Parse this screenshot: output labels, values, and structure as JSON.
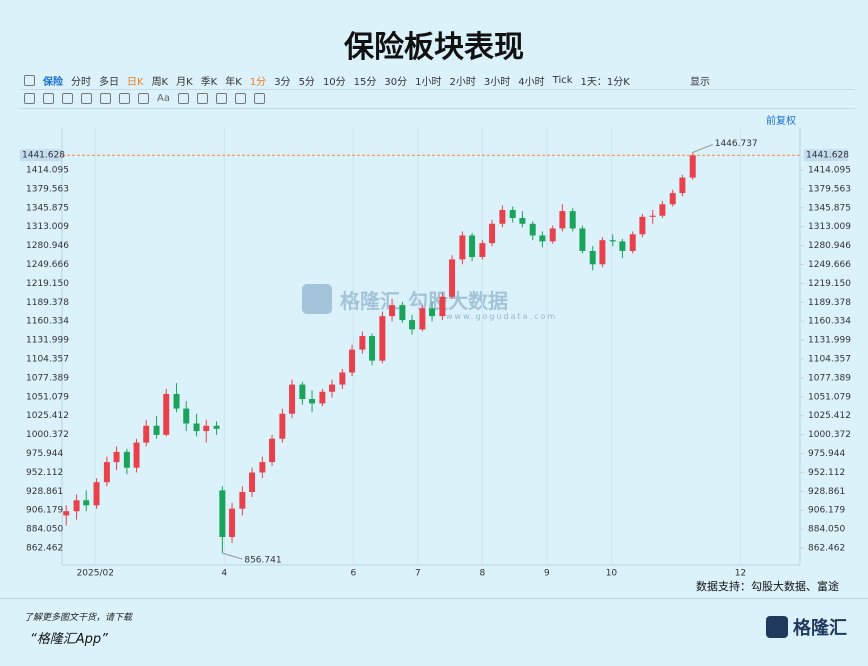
{
  "title": "保险板块表现",
  "toolbar": [
    "保险",
    "分时",
    "多日",
    "日K",
    "周K",
    "月K",
    "季K",
    "年K",
    "1分",
    "3分",
    "5分",
    "10分",
    "15分",
    "30分",
    "1小时",
    "2小时",
    "3小时",
    "4小时",
    "Tick",
    "1天：1分K"
  ],
  "display": "显示",
  "drawing_tool": "Aa",
  "adjust": "前复权",
  "watermark": {
    "brand": "格隆汇",
    "partner": "勾股大数据",
    "url": "www.gogudata.com"
  },
  "source": "数据支持：勾股大数据、富途",
  "footer": {
    "prompt": "了解更多图文干货，请下载",
    "app": "“格隆汇App”",
    "logo": "格隆汇"
  },
  "chart_data": {
    "type": "candlestick",
    "log_scale": true,
    "grid": "x",
    "up_color": "#e8414b",
    "down_color": "#1aa35a",
    "price_line_color": "#f08a3c",
    "x": [
      1.55,
      1.71,
      1.86,
      2.02,
      2.18,
      2.33,
      2.49,
      2.64,
      2.79,
      2.95,
      3.1,
      3.26,
      3.41,
      3.57,
      3.72,
      3.88,
      3.97,
      4.12,
      4.28,
      4.43,
      4.59,
      4.74,
      4.9,
      5.05,
      5.21,
      5.36,
      5.52,
      5.67,
      5.83,
      5.98,
      6.14,
      6.29,
      6.45,
      6.6,
      6.76,
      6.91,
      7.07,
      7.22,
      7.38,
      7.53,
      7.69,
      7.84,
      8.0,
      8.15,
      8.31,
      8.47,
      8.62,
      8.78,
      8.93,
      9.09,
      9.24,
      9.4,
      9.55,
      9.71,
      9.86,
      10.02,
      10.17,
      10.33,
      10.48,
      10.64,
      10.79,
      10.95,
      11.1,
      11.26
    ],
    "open": [
      900,
      905,
      918,
      912,
      940,
      965,
      978,
      958,
      990,
      1012,
      1000,
      1055,
      1035,
      1015,
      1005,
      1012,
      930,
      875,
      908,
      928,
      952,
      965,
      995,
      1028,
      1068,
      1048,
      1042,
      1058,
      1068,
      1085,
      1118,
      1138,
      1102,
      1168,
      1185,
      1162,
      1148,
      1180,
      1168,
      1198,
      1258,
      1298,
      1262,
      1285,
      1318,
      1342,
      1328,
      1318,
      1298,
      1288,
      1310,
      1340,
      1310,
      1272,
      1250,
      1290,
      1288,
      1272,
      1300,
      1330,
      1332,
      1352,
      1372,
      1400
    ],
    "high": [
      912,
      925,
      930,
      945,
      972,
      985,
      982,
      995,
      1020,
      1025,
      1062,
      1070,
      1045,
      1028,
      1020,
      1018,
      935,
      915,
      935,
      958,
      972,
      1000,
      1035,
      1075,
      1072,
      1060,
      1062,
      1075,
      1090,
      1125,
      1145,
      1142,
      1175,
      1195,
      1190,
      1170,
      1185,
      1190,
      1205,
      1265,
      1305,
      1302,
      1290,
      1325,
      1350,
      1348,
      1340,
      1322,
      1305,
      1315,
      1352,
      1345,
      1315,
      1280,
      1295,
      1300,
      1292,
      1305,
      1335,
      1342,
      1358,
      1378,
      1405,
      1446.737
    ],
    "low": [
      888,
      895,
      905,
      908,
      935,
      955,
      950,
      952,
      985,
      995,
      998,
      1030,
      1005,
      998,
      990,
      1000,
      856.741,
      868,
      900,
      922,
      945,
      960,
      990,
      1022,
      1040,
      1030,
      1038,
      1050,
      1062,
      1080,
      1112,
      1095,
      1098,
      1160,
      1158,
      1140,
      1145,
      1160,
      1162,
      1195,
      1250,
      1255,
      1258,
      1280,
      1312,
      1320,
      1312,
      1290,
      1278,
      1284,
      1305,
      1305,
      1268,
      1240,
      1245,
      1280,
      1260,
      1268,
      1295,
      1318,
      1328,
      1348,
      1366,
      1396
    ],
    "close": [
      905,
      918,
      912,
      940,
      965,
      978,
      958,
      990,
      1012,
      1000,
      1055,
      1035,
      1015,
      1005,
      1012,
      1008,
      875,
      908,
      928,
      952,
      965,
      995,
      1028,
      1068,
      1048,
      1042,
      1058,
      1068,
      1085,
      1118,
      1138,
      1102,
      1168,
      1185,
      1162,
      1148,
      1180,
      1168,
      1198,
      1258,
      1298,
      1262,
      1285,
      1318,
      1342,
      1328,
      1318,
      1298,
      1288,
      1310,
      1340,
      1310,
      1272,
      1250,
      1290,
      1288,
      1272,
      1300,
      1330,
      1332,
      1352,
      1372,
      1400,
      1441.628
    ],
    "xlim": [
      1.5,
      13
    ],
    "xticks": [
      {
        "value": 2,
        "label": "2025/02"
      },
      4,
      6,
      7,
      8,
      9,
      10,
      12
    ],
    "ylim": [
      843.5,
      1493.9
    ],
    "yticks": [
      1414.095,
      1379.563,
      1345.875,
      1313.009,
      1280.946,
      1249.666,
      {
        "value": 1219.15,
        "label": "1219.150"
      },
      1189.378,
      1160.334,
      1131.999,
      1104.357,
      1077.389,
      1051.079,
      1025.412,
      1000.372,
      975.944,
      952.112,
      928.861,
      906.179,
      {
        "value": 884.05,
        "label": "884.050"
      },
      862.462
    ]
  }
}
